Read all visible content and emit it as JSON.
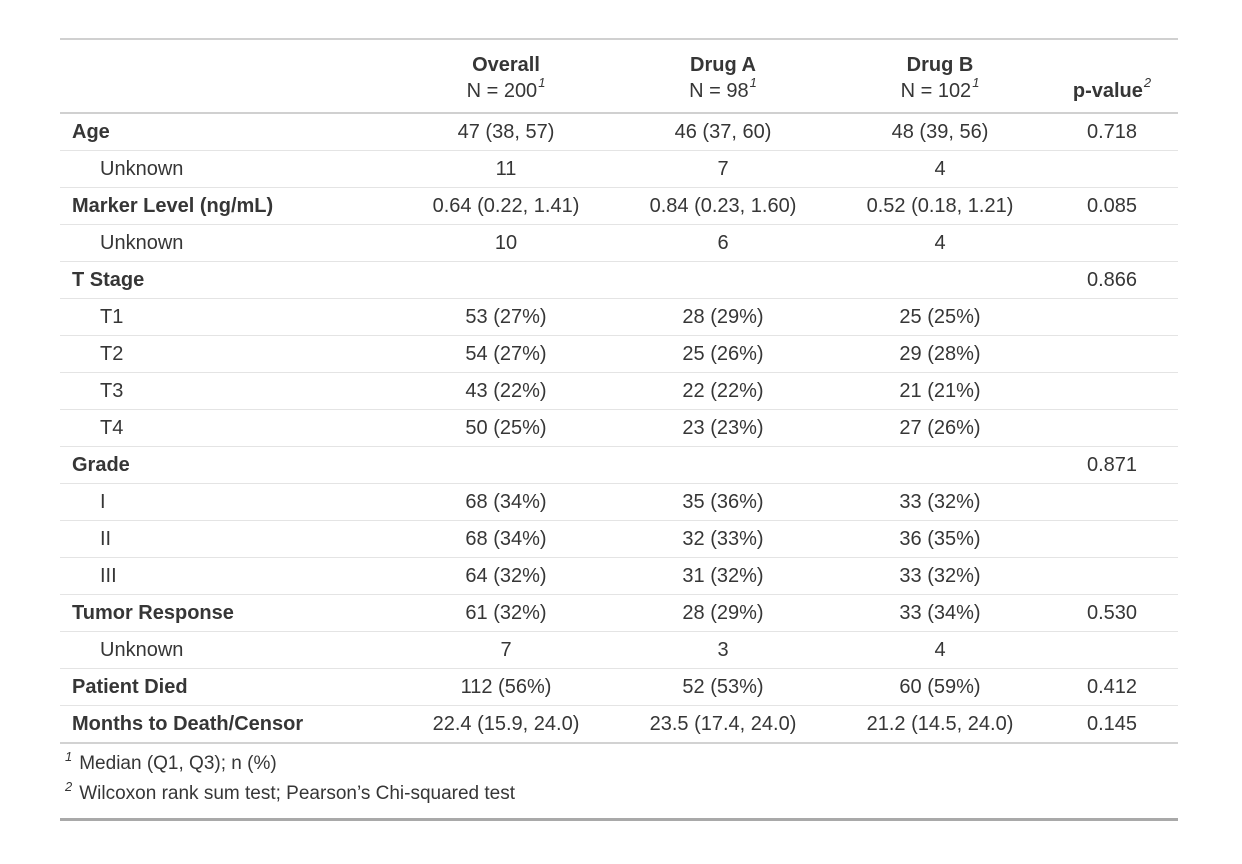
{
  "chart_data": {
    "type": "table",
    "title": "",
    "header": {
      "stub_label": "",
      "groups": [
        {
          "label": "Overall",
          "n_label": "N = 200",
          "footnote_mark": "1"
        },
        {
          "label": "Drug A",
          "n_label": "N = 98",
          "footnote_mark": "1"
        },
        {
          "label": "Drug B",
          "n_label": "N = 102",
          "footnote_mark": "1"
        }
      ],
      "p_value": {
        "label": "p-value",
        "footnote_mark": "2"
      }
    },
    "rows": [
      {
        "label": "Age",
        "style": "variable",
        "overall": "47 (38, 57)",
        "drug_a": "46 (37, 60)",
        "drug_b": "48 (39, 56)",
        "p": "0.718"
      },
      {
        "label": "Unknown",
        "style": "sub",
        "overall": "11",
        "drug_a": "7",
        "drug_b": "4",
        "p": ""
      },
      {
        "label": "Marker Level (ng/mL)",
        "style": "variable",
        "overall": "0.64 (0.22, 1.41)",
        "drug_a": "0.84 (0.23, 1.60)",
        "drug_b": "0.52 (0.18, 1.21)",
        "p": "0.085"
      },
      {
        "label": "Unknown",
        "style": "sub",
        "overall": "10",
        "drug_a": "6",
        "drug_b": "4",
        "p": ""
      },
      {
        "label": "T Stage",
        "style": "variable",
        "overall": "",
        "drug_a": "",
        "drug_b": "",
        "p": "0.866"
      },
      {
        "label": "T1",
        "style": "sub",
        "overall": "53 (27%)",
        "drug_a": "28 (29%)",
        "drug_b": "25 (25%)",
        "p": ""
      },
      {
        "label": "T2",
        "style": "sub",
        "overall": "54 (27%)",
        "drug_a": "25 (26%)",
        "drug_b": "29 (28%)",
        "p": ""
      },
      {
        "label": "T3",
        "style": "sub",
        "overall": "43 (22%)",
        "drug_a": "22 (22%)",
        "drug_b": "21 (21%)",
        "p": ""
      },
      {
        "label": "T4",
        "style": "sub",
        "overall": "50 (25%)",
        "drug_a": "23 (23%)",
        "drug_b": "27 (26%)",
        "p": ""
      },
      {
        "label": "Grade",
        "style": "variable",
        "overall": "",
        "drug_a": "",
        "drug_b": "",
        "p": "0.871"
      },
      {
        "label": "I",
        "style": "sub",
        "overall": "68 (34%)",
        "drug_a": "35 (36%)",
        "drug_b": "33 (32%)",
        "p": ""
      },
      {
        "label": "II",
        "style": "sub",
        "overall": "68 (34%)",
        "drug_a": "32 (33%)",
        "drug_b": "36 (35%)",
        "p": ""
      },
      {
        "label": "III",
        "style": "sub",
        "overall": "64 (32%)",
        "drug_a": "31 (32%)",
        "drug_b": "33 (32%)",
        "p": ""
      },
      {
        "label": "Tumor Response",
        "style": "variable",
        "overall": "61 (32%)",
        "drug_a": "28 (29%)",
        "drug_b": "33 (34%)",
        "p": "0.530"
      },
      {
        "label": "Unknown",
        "style": "sub",
        "overall": "7",
        "drug_a": "3",
        "drug_b": "4",
        "p": ""
      },
      {
        "label": "Patient Died",
        "style": "variable",
        "overall": "112 (56%)",
        "drug_a": "52 (53%)",
        "drug_b": "60 (59%)",
        "p": "0.412"
      },
      {
        "label": "Months to Death/Censor",
        "style": "variable",
        "overall": "22.4 (15.9, 24.0)",
        "drug_a": "23.5 (17.4, 24.0)",
        "drug_b": "21.2 (14.5, 24.0)",
        "p": "0.145"
      }
    ],
    "footnotes": [
      {
        "mark": "1",
        "text": "Median (Q1, Q3); n (%)"
      },
      {
        "mark": "2",
        "text": "Wilcoxon rank sum test; Pearson’s Chi-squared test"
      }
    ],
    "colors": {
      "text": "#363636",
      "border_light": "#e4e4e4",
      "border_medium": "#d0d0d0",
      "border_dark": "#a9a9a9",
      "background": "#ffffff"
    }
  }
}
